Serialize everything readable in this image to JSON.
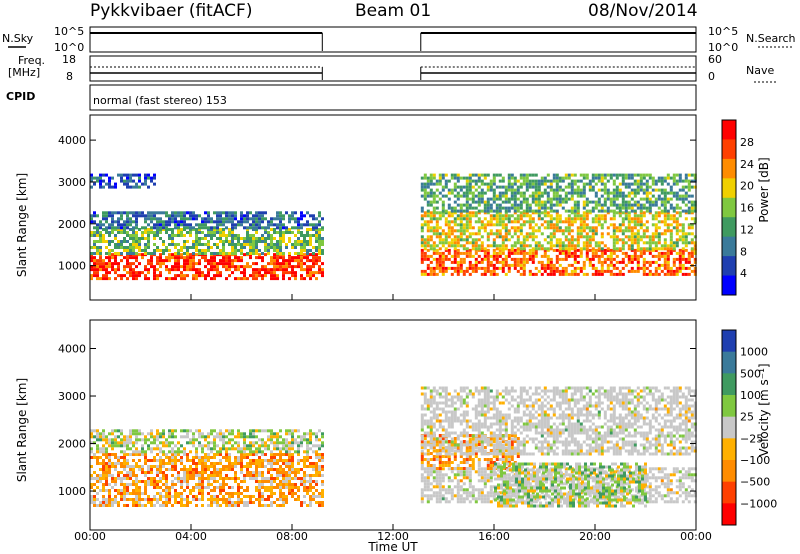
{
  "header": {
    "station": "Pykkvibaer (fitACF)",
    "beam": "Beam 01",
    "date": "08/Nov/2014"
  },
  "status_labels": {
    "nsky": "N.Sky",
    "nsky_ticks": [
      "10^5",
      "10^0"
    ],
    "nsearch": "N.Search",
    "nsearch_ticks": [
      "10^5",
      "10^0"
    ],
    "freq_line1": "Freq.",
    "freq_line2": "[MHz]",
    "freq_ticks": [
      "18",
      "8"
    ],
    "nave": "Nave",
    "nave_ticks": [
      "60",
      "0"
    ],
    "cpid": "CPID",
    "cpid_text": "normal (fast stereo) 153"
  },
  "colors": {
    "power_scale": [
      "#0000ff",
      "#1f3fb0",
      "#3a7a9a",
      "#3f9a60",
      "#7fc840",
      "#f0d000",
      "#ff8c00",
      "#ff4000",
      "#ff0000"
    ],
    "velocity_scale": [
      "#ff0000",
      "#ff4000",
      "#ff8c00",
      "#ffb000",
      "#c8c8c8",
      "#7fc840",
      "#3f9a60",
      "#3a7a9a",
      "#1f3fb0"
    ],
    "ground_scatter": "#c8c8c8"
  },
  "chart_data": [
    {
      "type": "heatmap",
      "title": "",
      "xlabel": "Time UT",
      "ylabel": "Slant Range [km]",
      "x_ticks": [
        "00:00",
        "04:00",
        "08:00",
        "12:00",
        "16:00",
        "20:00",
        "00:00"
      ],
      "xlim_hours": [
        0,
        24
      ],
      "ylim_km": [
        180,
        4600
      ],
      "y_ticks": [
        1000,
        2000,
        3000,
        4000
      ],
      "colorbar": {
        "label": "Power [dB]",
        "ticks": [
          "4",
          "8",
          "12",
          "16",
          "20",
          "24",
          "28"
        ],
        "range": [
          0,
          30
        ]
      },
      "data_gaps_hours": [
        [
          9.2,
          13.1
        ]
      ],
      "bands": [
        {
          "t": [
            0.0,
            9.2
          ],
          "range_km": [
            700,
            1300
          ],
          "value_db": 26
        },
        {
          "t": [
            0.0,
            9.2
          ],
          "range_km": [
            1300,
            1900
          ],
          "value_db": 14
        },
        {
          "t": [
            0.0,
            9.2
          ],
          "range_km": [
            1900,
            2300
          ],
          "value_db": 8
        },
        {
          "t": [
            0.0,
            2.6
          ],
          "range_km": [
            2900,
            3200
          ],
          "value_db": 6
        },
        {
          "t": [
            13.1,
            24.0
          ],
          "range_km": [
            800,
            1400
          ],
          "value_db": 24
        },
        {
          "t": [
            13.1,
            24.0
          ],
          "range_km": [
            1400,
            2300
          ],
          "value_db": 18
        },
        {
          "t": [
            13.1,
            24.0
          ],
          "range_km": [
            2300,
            3200
          ],
          "value_db": 12
        }
      ]
    },
    {
      "type": "heatmap",
      "title": "",
      "xlabel": "Time UT",
      "ylabel": "Slant Range [km]",
      "x_ticks": [
        "00:00",
        "04:00",
        "08:00",
        "12:00",
        "16:00",
        "20:00",
        "00:00"
      ],
      "xlim_hours": [
        0,
        24
      ],
      "ylim_km": [
        180,
        4600
      ],
      "y_ticks": [
        1000,
        2000,
        3000,
        4000
      ],
      "colorbar": {
        "label": "Velocity [m s⁻¹]",
        "ticks": [
          "1000",
          "500",
          "100",
          "25",
          "−25",
          "−100",
          "−500",
          "−1000"
        ],
        "range": [
          -1000,
          1000
        ]
      },
      "data_gaps_hours": [
        [
          9.2,
          13.1
        ]
      ],
      "bands": [
        {
          "t": [
            0.0,
            9.2
          ],
          "range_km": [
            700,
            1800
          ],
          "value_ms": -300
        },
        {
          "t": [
            0.0,
            9.2
          ],
          "range_km": [
            1800,
            2300
          ],
          "value_ms": 80
        },
        {
          "t": [
            13.1,
            24.0
          ],
          "range_km": [
            800,
            1500
          ],
          "value_ms": 0,
          "ground_scatter": true
        },
        {
          "t": [
            13.1,
            17.0
          ],
          "range_km": [
            1500,
            2200
          ],
          "value_ms": -300
        },
        {
          "t": [
            16.0,
            22.0
          ],
          "range_km": [
            700,
            1600
          ],
          "value_ms": 120
        },
        {
          "t": [
            13.1,
            24.0
          ],
          "range_km": [
            1800,
            3200
          ],
          "value_ms": 0,
          "ground_scatter": true
        }
      ]
    }
  ]
}
